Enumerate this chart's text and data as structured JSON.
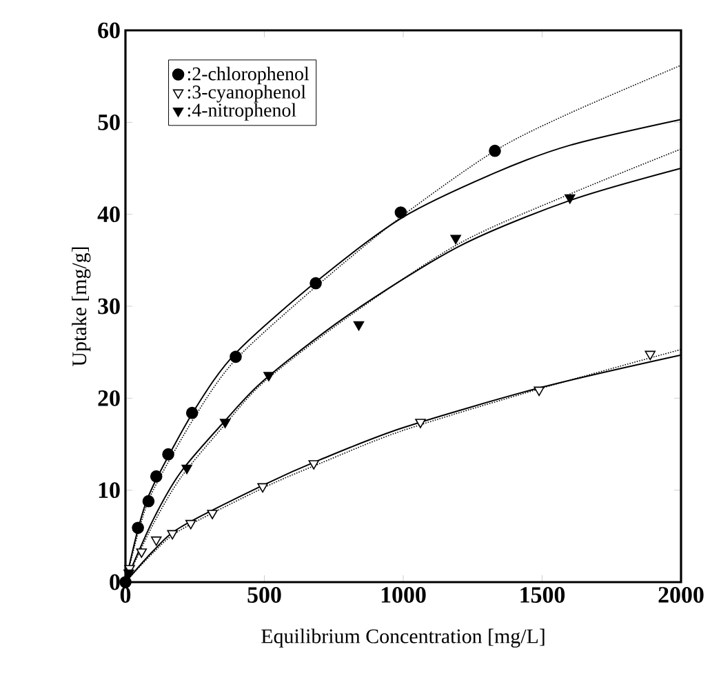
{
  "chart_data": {
    "type": "scatter",
    "xlabel": "Equilibrium Concentration [mg/L]",
    "ylabel": "Uptake [mg/g]",
    "xlim": [
      0,
      2000
    ],
    "ylim": [
      0,
      60
    ],
    "xticks": [
      0,
      500,
      1000,
      1500,
      2000
    ],
    "yticks": [
      0,
      10,
      20,
      30,
      40,
      50,
      60
    ],
    "grid": false,
    "legend": "top left",
    "series": [
      {
        "name": ":2-chlorophenol",
        "color": "#000000",
        "marker": "circle",
        "x": [
          0,
          45,
          83,
          111,
          154,
          240,
          397,
          685,
          991,
          1330
        ],
        "values": [
          0,
          5.9,
          8.8,
          11.5,
          13.9,
          18.4,
          24.5,
          32.5,
          40.2,
          46.9
        ]
      },
      {
        "name": ":3-cyanophenol",
        "color": "#ffffff",
        "marker": "triangle",
        "x": [
          15,
          58,
          111,
          169,
          235,
          313,
          494,
          678,
          1062,
          1489,
          1889
        ],
        "values": [
          1.5,
          3.3,
          4.6,
          5.3,
          6.4,
          7.5,
          10.4,
          12.9,
          17.4,
          20.9,
          24.8
        ]
      },
      {
        "name": ":4-nitrophenol",
        "color": "#000000",
        "marker": "triangle",
        "x": [
          12,
          221,
          359,
          516,
          840,
          1189,
          1600
        ],
        "values": [
          1,
          12.4,
          17.4,
          22.5,
          28,
          37.4,
          41.8
        ]
      },
      {
        "type": "line",
        "color": "#000000",
        "line_style": "solid",
        "marker": "none",
        "x": [
          0,
          50,
          100,
          250,
          400,
          700,
          1000,
          1330,
          1600,
          2000
        ],
        "values": [
          0,
          6.3,
          10.5,
          18.8,
          25,
          33,
          39.7,
          44.5,
          47.5,
          50.3
        ]
      },
      {
        "type": "line",
        "color": "#000000",
        "line_style": "dotted",
        "marker": "none",
        "x": [
          0,
          50,
          100,
          250,
          400,
          700,
          1000,
          1330,
          1600,
          2000
        ],
        "values": [
          0,
          5.8,
          10,
          18,
          24.3,
          32.5,
          39.9,
          46.9,
          51,
          56.2
        ]
      },
      {
        "type": "line",
        "color": "#000000",
        "line_style": "solid",
        "marker": "none",
        "x": [
          0,
          100,
          200,
          360,
          500,
          800,
          1200,
          1600,
          2000
        ],
        "values": [
          0,
          6.8,
          12,
          17.6,
          22,
          29,
          36.5,
          41.5,
          45
        ]
      },
      {
        "type": "line",
        "color": "#000000",
        "line_style": "dotted",
        "marker": "none",
        "x": [
          0,
          100,
          200,
          360,
          500,
          800,
          1200,
          1600,
          2000
        ],
        "values": [
          0,
          6.3,
          11.4,
          17.2,
          21.8,
          28.8,
          36.8,
          42.2,
          47.1
        ]
      },
      {
        "type": "line",
        "color": "#000000",
        "line_style": "solid",
        "marker": "none",
        "x": [
          0,
          100,
          200,
          500,
          700,
          1000,
          1500,
          2000
        ],
        "values": [
          0,
          3.4,
          6,
          10.6,
          13.3,
          16.8,
          21.2,
          24.7
        ]
      },
      {
        "type": "line",
        "color": "#000000",
        "line_style": "dotted",
        "marker": "none",
        "x": [
          0,
          100,
          200,
          500,
          700,
          1000,
          1500,
          2000
        ],
        "values": [
          0,
          3.2,
          5.7,
          10.3,
          12.9,
          16.5,
          21.1,
          25.3
        ]
      }
    ]
  }
}
